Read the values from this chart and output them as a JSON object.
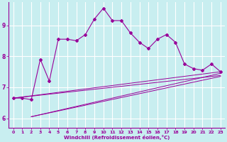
{
  "xlabel": "Windchill (Refroidissement éolien,°C)",
  "bg_color": "#c8eef0",
  "line_color": "#990099",
  "grid_color": "#ffffff",
  "xlim": [
    -0.5,
    23.5
  ],
  "ylim": [
    5.7,
    9.75
  ],
  "xticks": [
    0,
    1,
    2,
    3,
    4,
    5,
    6,
    7,
    8,
    9,
    10,
    11,
    12,
    13,
    14,
    15,
    16,
    17,
    18,
    19,
    20,
    21,
    22,
    23
  ],
  "yticks": [
    6,
    7,
    8,
    9
  ],
  "main_x": [
    0,
    1,
    2,
    3,
    4,
    5,
    6,
    7,
    8,
    9,
    10,
    11,
    12,
    13,
    14,
    15,
    16,
    17,
    18,
    19,
    20,
    21,
    22,
    23
  ],
  "main_y": [
    6.65,
    6.65,
    6.6,
    7.9,
    7.2,
    8.55,
    8.55,
    8.5,
    8.7,
    9.2,
    9.55,
    9.15,
    9.15,
    8.75,
    8.45,
    8.25,
    8.55,
    8.7,
    8.45,
    7.75,
    7.6,
    7.55,
    7.75,
    7.5
  ],
  "trend1_x": [
    0,
    23
  ],
  "trend1_y": [
    6.65,
    7.5
  ],
  "trend2_x": [
    0,
    23
  ],
  "trend2_y": [
    6.65,
    7.38
  ],
  "trend3_x": [
    2,
    23
  ],
  "trend3_y": [
    6.05,
    7.45
  ],
  "trend4_x": [
    2,
    23
  ],
  "trend4_y": [
    6.05,
    7.35
  ]
}
